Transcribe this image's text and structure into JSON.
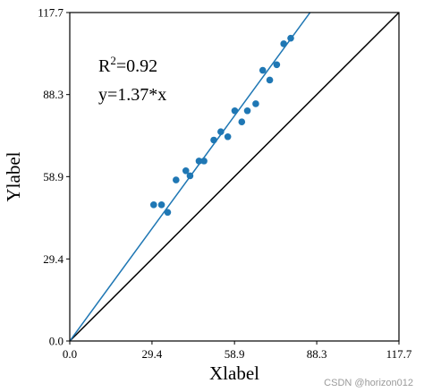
{
  "chart_data": {
    "type": "scatter",
    "xlabel": "Xlabel",
    "ylabel": "Ylabel",
    "xlim": [
      0,
      117.7
    ],
    "ylim": [
      0,
      117.7
    ],
    "xticks": [
      0.0,
      29.4,
      58.9,
      88.3,
      117.7
    ],
    "yticks": [
      0.0,
      29.4,
      58.9,
      88.3,
      117.7
    ],
    "tick_labels": [
      "0.0",
      "29.4",
      "58.9",
      "88.3",
      "117.7"
    ],
    "grid": false,
    "series": [
      {
        "color": "#1f77b4",
        "points": [
          [
            30.0,
            48.8
          ],
          [
            32.8,
            48.8
          ],
          [
            35.0,
            46.1
          ],
          [
            38.0,
            57.7
          ],
          [
            41.5,
            61.0
          ],
          [
            43.0,
            59.2
          ],
          [
            46.2,
            64.5
          ],
          [
            48.0,
            64.5
          ],
          [
            51.5,
            72.0
          ],
          [
            54.0,
            75.0
          ],
          [
            56.5,
            73.2
          ],
          [
            59.0,
            82.5
          ],
          [
            61.5,
            78.5
          ],
          [
            63.5,
            82.5
          ],
          [
            66.5,
            85.0
          ],
          [
            69.0,
            97.0
          ],
          [
            71.5,
            93.5
          ],
          [
            74.0,
            99.0
          ],
          [
            76.5,
            106.5
          ],
          [
            79.0,
            108.5
          ]
        ]
      }
    ],
    "fit_line": {
      "slope": 1.37,
      "color": "#1f77b4"
    },
    "reference_line": {
      "slope": 1.0,
      "color": "#000000"
    },
    "annotations": {
      "r2_prefix": "R",
      "r2_sup": "2",
      "r2_value": "=0.92",
      "equation": "y=1.37*x"
    }
  },
  "watermark": "CSDN @horizon012"
}
